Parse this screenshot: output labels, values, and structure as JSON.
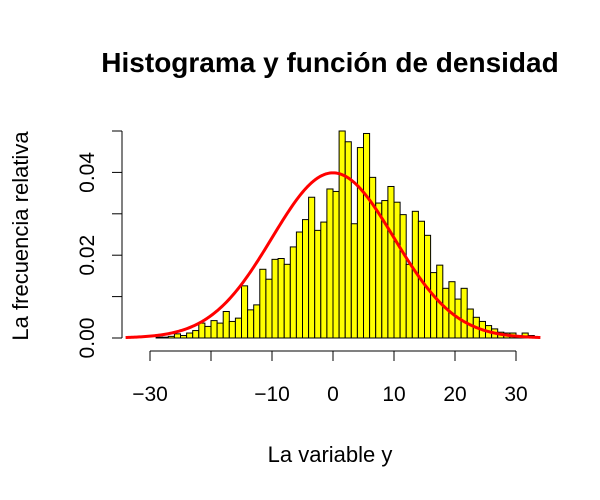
{
  "chart_data": {
    "type": "bar",
    "title": "Histograma y función de densidad",
    "xlabel": "La variable y",
    "ylabel": "La frecuencia relativa",
    "xlim": [
      -34,
      34
    ],
    "ylim": [
      0,
      0.05
    ],
    "x_ticks": [
      -30,
      -20,
      -10,
      0,
      10,
      20,
      30
    ],
    "x_tick_labels": [
      "−30",
      "",
      "−10",
      "0",
      "10",
      "20",
      "30"
    ],
    "y_ticks": [
      0,
      0.01,
      0.02,
      0.03,
      0.04,
      0.05
    ],
    "y_tick_labels": [
      "0.00",
      "",
      "0.02",
      "",
      "0.04",
      ""
    ],
    "grid": false,
    "bin_width": 1,
    "bin_start": -32,
    "values": [
      0.0,
      0.0,
      0.0,
      0.0002,
      0.0002,
      0.0004,
      0.001,
      0.0006,
      0.0012,
      0.0018,
      0.0036,
      0.0028,
      0.0042,
      0.0036,
      0.0064,
      0.004,
      0.0048,
      0.0126,
      0.0068,
      0.008,
      0.0166,
      0.0142,
      0.019,
      0.0192,
      0.0178,
      0.022,
      0.0256,
      0.0286,
      0.034,
      0.026,
      0.028,
      0.036,
      0.0354,
      0.05,
      0.0474,
      0.0276,
      0.046,
      0.0494,
      0.0388,
      0.0326,
      0.0332,
      0.0366,
      0.0328,
      0.0298,
      0.0178,
      0.0306,
      0.0282,
      0.0248,
      0.0158,
      0.0176,
      0.012,
      0.0136,
      0.0094,
      0.012,
      0.007,
      0.005,
      0.004,
      0.003,
      0.0022,
      0.0014,
      0.0012,
      0.0012,
      0.0006,
      0.0012,
      0.0006
    ],
    "bar_color": "#FFFF00",
    "bar_edge_color": "#000000",
    "density": {
      "type": "normal",
      "mean": 0,
      "sd": 10,
      "color": "#FF0000"
    }
  }
}
